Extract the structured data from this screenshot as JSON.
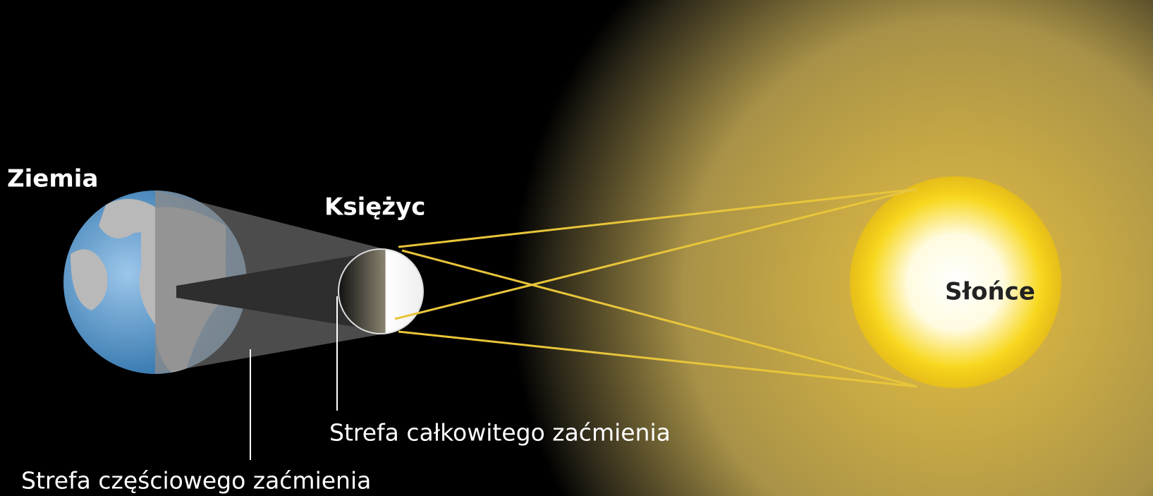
{
  "labels": {
    "earth": "Ziemia",
    "moon": "Księżyc",
    "sun": "Słońce",
    "total_zone": "Strefa całkowitego zaćmienia",
    "partial_zone": "Strefa częściowego zaćmienia"
  }
}
